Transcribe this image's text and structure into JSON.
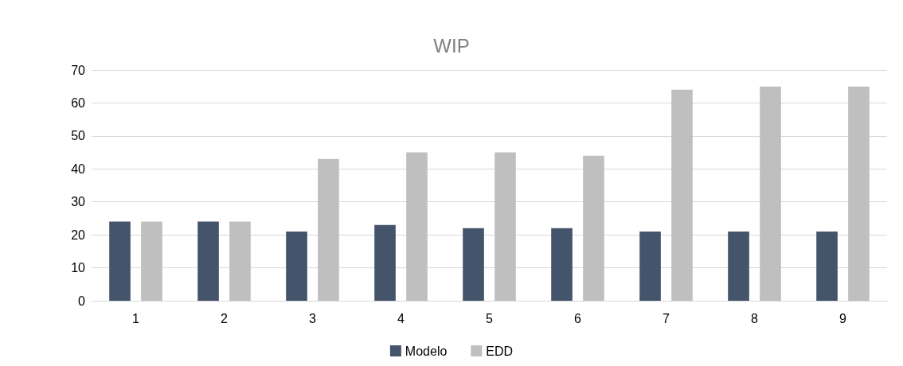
{
  "chart_data": {
    "type": "bar",
    "title": "WIP",
    "categories": [
      "1",
      "2",
      "3",
      "4",
      "5",
      "6",
      "7",
      "8",
      "9"
    ],
    "series": [
      {
        "name": "Modelo",
        "color": "#44546a",
        "values": [
          24,
          24,
          21,
          23,
          22,
          22,
          21,
          21,
          21
        ]
      },
      {
        "name": "EDD",
        "color": "#bfbfbf",
        "values": [
          24,
          24,
          43,
          45,
          45,
          44,
          64,
          65,
          65
        ]
      }
    ],
    "ylim": [
      0,
      70
    ],
    "yticks": [
      0,
      10,
      20,
      30,
      40,
      50,
      60,
      70
    ],
    "grid": "y",
    "legend": "bottom"
  }
}
